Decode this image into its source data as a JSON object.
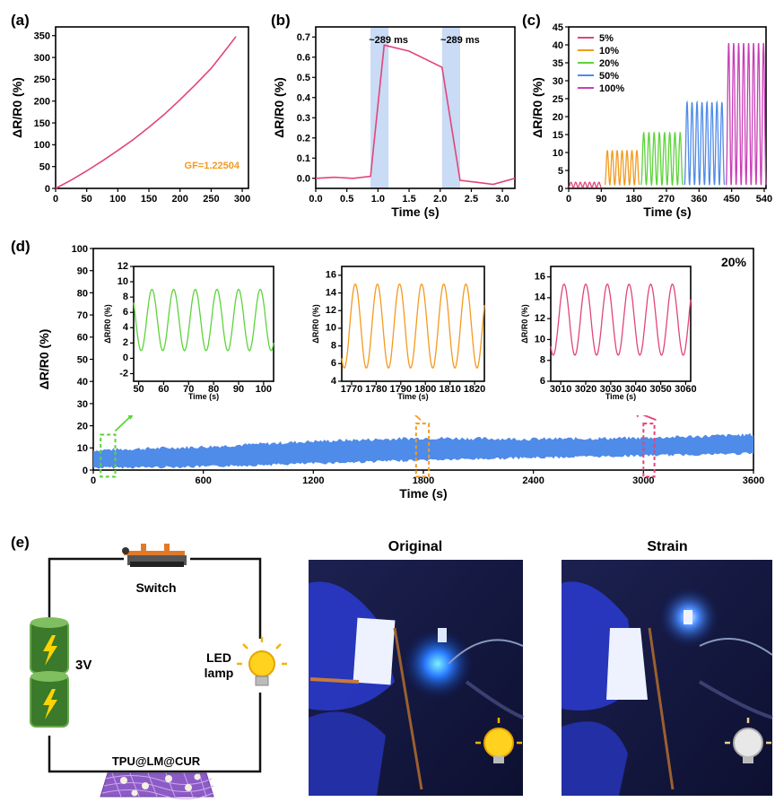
{
  "panels": {
    "a": {
      "label": "(a)"
    },
    "b": {
      "label": "(b)"
    },
    "c": {
      "label": "(c)"
    },
    "d": {
      "label": "(d)"
    },
    "e": {
      "label": "(e)"
    }
  },
  "colors": {
    "pink": "#e0457b",
    "orange": "#f39a1e",
    "green": "#5cd43a",
    "blue": "#4f8be8",
    "magenta": "#c93fb8",
    "highlight": "#c9dbf5",
    "gf_text": "#f39a1e"
  },
  "chart_data": [
    {
      "id": "a",
      "type": "line",
      "xlabel": "",
      "ylabel": "ΔR/R0 (%)",
      "xlim": [
        0,
        310
      ],
      "ylim": [
        0,
        370
      ],
      "xticks": [
        0,
        50,
        100,
        150,
        200,
        250,
        300
      ],
      "yticks": [
        0,
        50,
        100,
        150,
        200,
        250,
        300,
        350
      ],
      "annotation": "GF=1.22504",
      "series": [
        {
          "x": [
            0,
            25,
            50,
            75,
            100,
            125,
            150,
            175,
            200,
            225,
            250,
            275,
            290
          ],
          "y": [
            0,
            19,
            40,
            63,
            87,
            112,
            140,
            170,
            203,
            238,
            275,
            320,
            348
          ]
        }
      ]
    },
    {
      "id": "b",
      "type": "line",
      "xlabel": "Time (s)",
      "ylabel": "ΔR/R0 (%)",
      "xlim": [
        0,
        3.2
      ],
      "ylim": [
        -0.05,
        0.75
      ],
      "xticks": [
        "0.0",
        "0.5",
        "1.0",
        "1.5",
        "2.0",
        "2.5",
        "3.0"
      ],
      "yticks": [
        "0.0",
        "0.1",
        "0.2",
        "0.3",
        "0.4",
        "0.5",
        "0.6",
        "0.7"
      ],
      "annotations": [
        "~289 ms",
        "~289 ms"
      ],
      "shaded_spans": [
        [
          0.88,
          1.17
        ],
        [
          2.03,
          2.32
        ]
      ],
      "series": [
        {
          "x": [
            0,
            0.3,
            0.6,
            0.88,
            1.1,
            1.5,
            2.03,
            2.32,
            2.6,
            2.85,
            3.2
          ],
          "y": [
            0.0,
            0.005,
            0.0,
            0.01,
            0.66,
            0.63,
            0.55,
            -0.01,
            -0.02,
            -0.03,
            0.0
          ]
        }
      ]
    },
    {
      "id": "c",
      "type": "line",
      "xlabel": "Time (s)",
      "ylabel": "ΔR/R0 (%)",
      "xlim": [
        0,
        545
      ],
      "ylim": [
        0,
        45
      ],
      "xticks": [
        0,
        90,
        180,
        270,
        360,
        450,
        540
      ],
      "yticks": [
        0,
        5,
        10,
        15,
        20,
        25,
        30,
        35,
        40,
        45
      ],
      "series": [
        {
          "name": "5%",
          "color": "#e0457b",
          "x0": 0,
          "x1": 90,
          "cycles": 7,
          "low": 0.3,
          "high": 1.7
        },
        {
          "name": "10%",
          "color": "#f39a1e",
          "x0": 100,
          "x1": 195,
          "cycles": 7,
          "low": 1,
          "high": 10.5
        },
        {
          "name": "20%",
          "color": "#5cd43a",
          "x0": 200,
          "x1": 315,
          "cycles": 8,
          "low": 1,
          "high": 15.5
        },
        {
          "name": "50%",
          "color": "#4f8be8",
          "x0": 320,
          "x1": 430,
          "cycles": 8,
          "low": 1,
          "high": 24
        },
        {
          "name": "100%",
          "color": "#c93fb8",
          "x0": 435,
          "x1": 545,
          "cycles": 8,
          "low": 1,
          "high": 40.5
        }
      ]
    },
    {
      "id": "d",
      "type": "area",
      "xlabel": "Time (s)",
      "ylabel": "ΔR/R0 (%)",
      "xlim": [
        0,
        3600
      ],
      "ylim": [
        0,
        100
      ],
      "xticks": [
        0,
        600,
        1200,
        1800,
        2400,
        3000,
        3600
      ],
      "yticks": [
        0,
        10,
        20,
        30,
        40,
        50,
        60,
        70,
        80,
        90,
        100
      ],
      "annotation": "20%",
      "band": {
        "x": [
          0,
          600,
          1200,
          1800,
          2400,
          3000,
          3600
        ],
        "low": [
          1,
          1.5,
          3,
          4.5,
          5.5,
          6.5,
          7.5
        ],
        "high": [
          9,
          10.5,
          13,
          14.5,
          14,
          14.5,
          16
        ]
      }
    },
    {
      "id": "d_inset1",
      "type": "line",
      "xlabel": "Time (s)",
      "ylabel": "ΔR/R0 (%)",
      "xlim": [
        48,
        104
      ],
      "ylim": [
        -3,
        12
      ],
      "xticks": [
        50,
        60,
        70,
        80,
        90,
        100
      ],
      "yticks": [
        -2,
        0,
        2,
        4,
        6,
        8,
        10,
        12
      ],
      "color": "#5cd43a",
      "cycles": 6,
      "low": 1,
      "high": 9,
      "phase_x": 51
    },
    {
      "id": "d_inset2",
      "type": "line",
      "xlabel": "Time (s)",
      "ylabel": "ΔR/R0 (%)",
      "xlim": [
        1766,
        1824
      ],
      "ylim": [
        4,
        17
      ],
      "xticks": [
        1770,
        1780,
        1790,
        1800,
        1810,
        1820
      ],
      "yticks": [
        4,
        6,
        8,
        10,
        12,
        14,
        16
      ],
      "color": "#f39a1e",
      "cycles": 6,
      "low": 5.5,
      "high": 15,
      "phase_x": 1767
    },
    {
      "id": "d_inset3",
      "type": "line",
      "xlabel": "Time (s)",
      "ylabel": "ΔR/R0 (%)",
      "xlim": [
        3006,
        3062
      ],
      "ylim": [
        6,
        17
      ],
      "xticks": [
        3010,
        3020,
        3030,
        3040,
        3050,
        3060
      ],
      "yticks": [
        6,
        8,
        10,
        12,
        14,
        16
      ],
      "color": "#e0457b",
      "cycles": 6,
      "low": 8.5,
      "high": 15.3,
      "phase_x": 3007
    }
  ],
  "circuit": {
    "switch_label": "Switch",
    "battery_label": "3V",
    "led_label_line1": "LED",
    "led_label_line2": "lamp",
    "sensor_label": "TPU@LM@CUR"
  },
  "photos": {
    "original_title": "Original",
    "strain_title": "Strain"
  }
}
